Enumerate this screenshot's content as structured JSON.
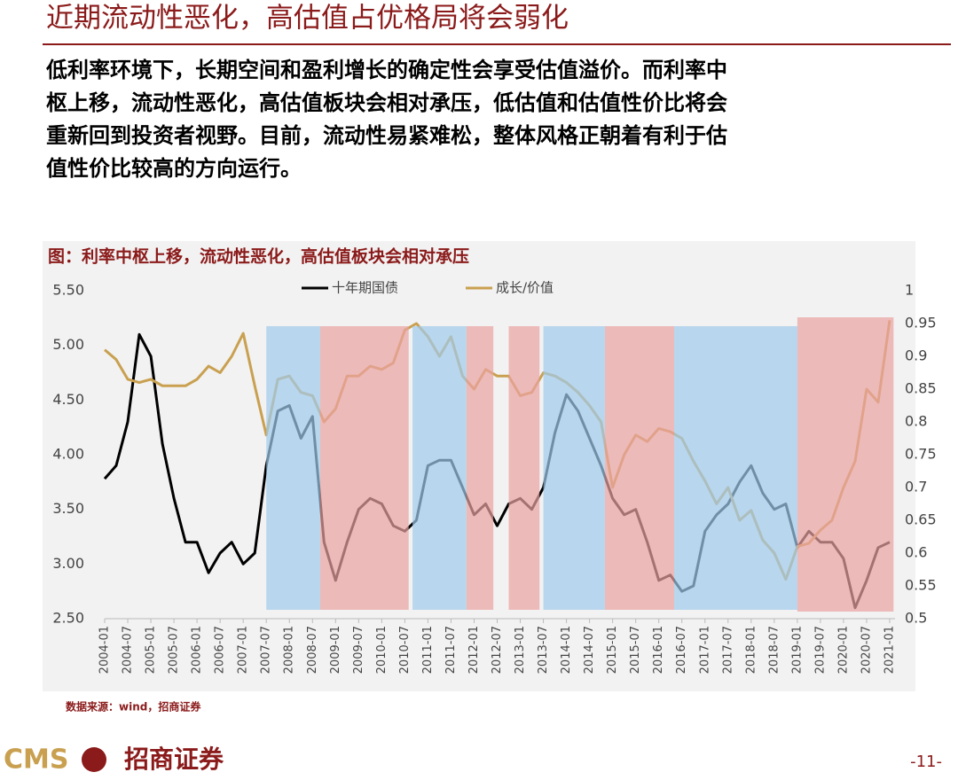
{
  "header": {
    "title": "近期流动性恶化，高估值占优格局将会弱化"
  },
  "body": {
    "lines": [
      "低利率环境下，长期空间和盈利增长的确定性会享受估值溢价。而利率中",
      "枢上移，流动性恶化，高估值板块会相对承压，低估值和估值性价比将会",
      "重新回到投资者视野。目前，流动性易紧难松，整体风格正朝着有利于估",
      "值性价比较高的方向运行。"
    ]
  },
  "chart_data": {
    "type": "line",
    "title": "图：利率中枢上移，流动性恶化，高估值板块会相对承压",
    "source": "数据来源：wind，招商证券",
    "categories": [
      "2004-01",
      null,
      "2004-07",
      null,
      "2005-01",
      null,
      "2005-07",
      null,
      "2006-01",
      null,
      "2006-07",
      null,
      "2007-01",
      null,
      "2007-07",
      null,
      "2008-01",
      null,
      "2008-07",
      null,
      "2009-01",
      null,
      "2009-07",
      null,
      "2010-01",
      null,
      "2010-07",
      null,
      "2011-01",
      null,
      "2011-07",
      null,
      "2012-01",
      null,
      "2012-07",
      null,
      "2013-01",
      null,
      "2013-07",
      null,
      "2014-01",
      null,
      "2014-07",
      null,
      "2015-01",
      null,
      "2015-07",
      null,
      "2016-01",
      null,
      "2016-07",
      null,
      "2017-01",
      null,
      "2017-07",
      null,
      "2018-01",
      null,
      "2018-07",
      null,
      "2019-01",
      null,
      "2019-07",
      null,
      "2020-01",
      null,
      "2020-07",
      null,
      "2021-01"
    ],
    "series": [
      {
        "name": "十年期国债",
        "color": "#000000",
        "axis": "y",
        "values": [
          3.78,
          3.9,
          4.3,
          5.1,
          4.9,
          4.1,
          3.6,
          3.2,
          3.2,
          2.92,
          3.1,
          3.2,
          3.0,
          3.1,
          3.9,
          4.4,
          4.45,
          4.15,
          4.35,
          3.2,
          2.85,
          3.2,
          3.5,
          3.6,
          3.55,
          3.35,
          3.3,
          3.4,
          3.9,
          3.95,
          3.95,
          3.7,
          3.45,
          3.55,
          3.35,
          3.55,
          3.6,
          3.5,
          3.7,
          4.2,
          4.55,
          4.4,
          4.15,
          3.9,
          3.6,
          3.45,
          3.5,
          3.2,
          2.85,
          2.9,
          2.75,
          2.8,
          3.3,
          3.45,
          3.55,
          3.75,
          3.9,
          3.65,
          3.5,
          3.55,
          3.15,
          3.3,
          3.2,
          3.2,
          3.05,
          2.6,
          2.85,
          3.15,
          3.2
        ]
      },
      {
        "name": "成长/价值",
        "color": "#c9a050",
        "axis": "y2",
        "values": [
          0.91,
          0.895,
          0.865,
          0.86,
          0.865,
          0.855,
          0.855,
          0.855,
          0.865,
          0.885,
          0.875,
          0.9,
          0.935,
          0.855,
          0.78,
          0.865,
          0.87,
          0.845,
          0.84,
          0.8,
          0.82,
          0.87,
          0.87,
          0.885,
          0.88,
          0.89,
          0.94,
          0.95,
          0.93,
          0.9,
          0.93,
          0.87,
          0.85,
          0.88,
          0.87,
          0.87,
          0.84,
          0.845,
          0.875,
          0.87,
          0.86,
          0.845,
          0.825,
          0.8,
          0.7,
          0.75,
          0.78,
          0.77,
          0.79,
          0.785,
          0.775,
          0.74,
          0.71,
          0.675,
          0.7,
          0.65,
          0.665,
          0.62,
          0.6,
          0.56,
          0.61,
          0.615,
          0.635,
          0.65,
          0.7,
          0.74,
          0.85,
          0.83,
          0.955
        ]
      }
    ],
    "bands": [
      {
        "start": "2007-07",
        "end": "2008-09",
        "color": "#9fcbeb"
      },
      {
        "start": "2008-09",
        "end": "2010-08",
        "color": "#eba3a3"
      },
      {
        "start": "2010-09",
        "end": "2011-11",
        "color": "#9fcbeb"
      },
      {
        "start": "2011-11",
        "end": "2012-06",
        "color": "#eba3a3"
      },
      {
        "start": "2012-10",
        "end": "2013-06",
        "color": "#eba3a3"
      },
      {
        "start": "2013-07",
        "end": "2014-11",
        "color": "#9fcbeb"
      },
      {
        "start": "2014-11",
        "end": "2016-05",
        "color": "#eba3a3"
      },
      {
        "start": "2016-05",
        "end": "2019-01",
        "color": "#9fcbeb"
      },
      {
        "start": "2019-01",
        "end": "2021-02",
        "color": "#eba3a3"
      }
    ],
    "ylim": [
      2.5,
      5.5
    ],
    "yticks": [
      {
        "value": 2.5,
        "label": "2.50"
      },
      {
        "value": 3,
        "label": "3.00"
      },
      {
        "value": 3.5,
        "label": "3.50"
      },
      {
        "value": 4,
        "label": "4.00"
      },
      {
        "value": 4.5,
        "label": "4.50"
      },
      {
        "value": 5,
        "label": "5.00"
      },
      {
        "value": 5.5,
        "label": "5.50"
      }
    ],
    "y2lim": [
      0.5,
      1
    ],
    "y2ticks": [
      0.5,
      0.55,
      0.6,
      0.65,
      0.7,
      0.75,
      0.8,
      0.85,
      0.9,
      0.95,
      1
    ],
    "legend": "top"
  },
  "footer": {
    "logo": "CMS",
    "company": "招商证券",
    "page": "-11-"
  }
}
